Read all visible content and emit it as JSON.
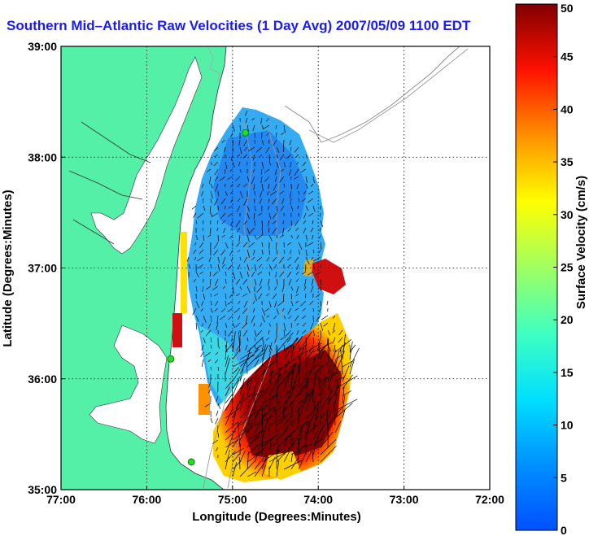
{
  "chart_data": {
    "type": "heatmap",
    "title": "Southern Mid–Atlantic Raw Velocities (1 Day Avg) 2007/05/09 1100 EDT",
    "xlabel": "Longitude (Degrees:Minutes)",
    "ylabel": "Latitude (Degrees:Minutes)",
    "x_ticks": [
      "77:00",
      "76:00",
      "75:00",
      "74:00",
      "73:00",
      "72:00"
    ],
    "y_ticks": [
      "39:00",
      "38:00",
      "37:00",
      "36:00",
      "35:00"
    ],
    "xlim": [
      -77,
      -72
    ],
    "ylim": [
      35,
      39
    ],
    "grid": true,
    "colorbar": {
      "label": "Surface Velocity (cm/s)",
      "range": [
        0,
        50
      ],
      "ticks": [
        "0",
        "5",
        "10",
        "15",
        "20",
        "25",
        "30",
        "35",
        "40",
        "45",
        "50"
      ]
    },
    "colors": {
      "land": "#55f0a8",
      "title": "#1a1aff",
      "site_marker": "#22dd22"
    },
    "hf_radar_sites": [
      {
        "lon": -74.85,
        "lat": 38.22
      },
      {
        "lon": -75.72,
        "lat": 36.18
      },
      {
        "lon": -75.48,
        "lat": 35.25
      }
    ]
  }
}
